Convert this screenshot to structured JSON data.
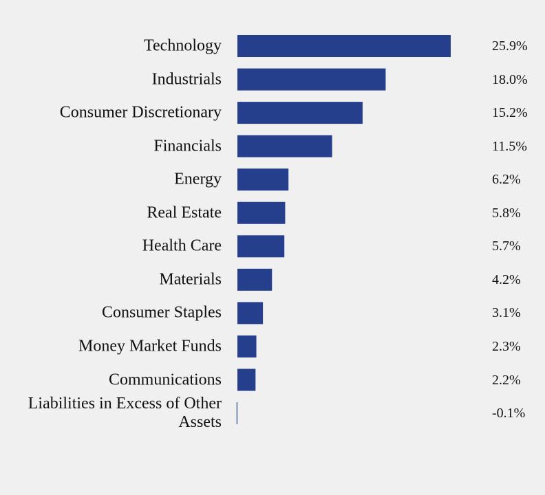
{
  "chart_data": {
    "type": "bar",
    "orientation": "horizontal",
    "categories": [
      "Technology",
      "Industrials",
      "Consumer Discretionary",
      "Financials",
      "Energy",
      "Real Estate",
      "Health Care",
      "Materials",
      "Consumer Staples",
      "Money Market Funds",
      "Communications",
      "Liabilities in Excess of Other Assets"
    ],
    "values": [
      25.9,
      18.0,
      15.2,
      11.5,
      6.2,
      5.8,
      5.7,
      4.2,
      3.1,
      2.3,
      2.2,
      -0.1
    ],
    "value_labels": [
      "25.9%",
      "18.0%",
      "15.2%",
      "11.5%",
      "6.2%",
      "5.8%",
      "5.7%",
      "4.2%",
      "3.1%",
      "2.3%",
      "2.2%",
      "-0.1%"
    ],
    "color": "#253f8c"
  }
}
